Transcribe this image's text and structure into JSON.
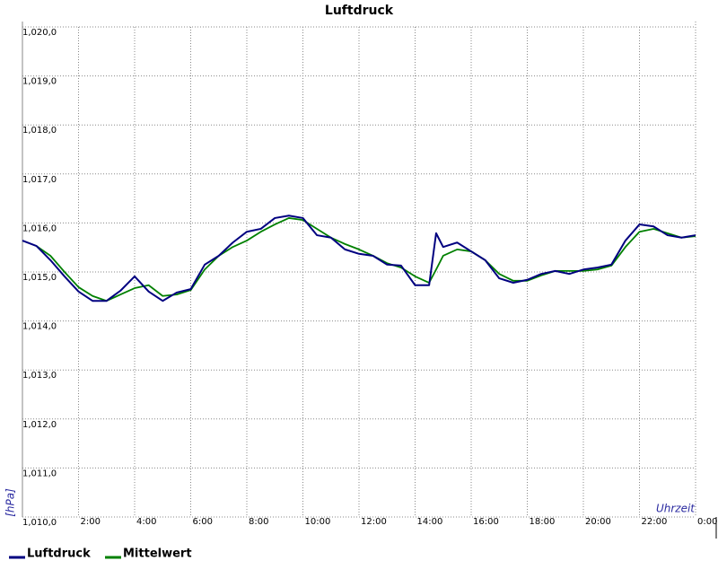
{
  "chart_data": {
    "type": "line",
    "title": "Luftdruck",
    "y_label": "[hPa]",
    "x_label": "Uhrzeit",
    "xlim": [
      0,
      24
    ],
    "ylim": [
      1010,
      1020
    ],
    "grid": true,
    "legend": "bottom-left",
    "xticks": [
      {
        "value": 2,
        "label": "2:00"
      },
      {
        "value": 4,
        "label": "4:00"
      },
      {
        "value": 6,
        "label": "6:00"
      },
      {
        "value": 8,
        "label": "8:00"
      },
      {
        "value": 10,
        "label": "10:00"
      },
      {
        "value": 12,
        "label": "12:00"
      },
      {
        "value": 14,
        "label": "14:00"
      },
      {
        "value": 16,
        "label": "16:00"
      },
      {
        "value": 18,
        "label": "18:00"
      },
      {
        "value": 20,
        "label": "20:00"
      },
      {
        "value": 22,
        "label": "22:00"
      },
      {
        "value": 24,
        "label": "0:00"
      }
    ],
    "yticks": [
      {
        "value": 1010,
        "label": "1,010,0"
      },
      {
        "value": 1011,
        "label": "1,011,0"
      },
      {
        "value": 1012,
        "label": "1,012,0"
      },
      {
        "value": 1013,
        "label": "1,013,0"
      },
      {
        "value": 1014,
        "label": "1,014,0"
      },
      {
        "value": 1015,
        "label": "1,015,0"
      },
      {
        "value": 1016,
        "label": "1,016,0"
      },
      {
        "value": 1017,
        "label": "1,017,0"
      },
      {
        "value": 1018,
        "label": "1,018,0"
      },
      {
        "value": 1019,
        "label": "1,019,0"
      },
      {
        "value": 1020,
        "label": "1,020,0"
      }
    ],
    "x": [
      0,
      0.5,
      1,
      1.5,
      2,
      2.5,
      3,
      3.5,
      4,
      4.5,
      5,
      5.5,
      6,
      6.5,
      7,
      7.5,
      8,
      8.5,
      9,
      9.5,
      10,
      10.5,
      11,
      11.5,
      12,
      12.5,
      13,
      13.5,
      14,
      14.5,
      14.75,
      15,
      15.5,
      16,
      16.5,
      17,
      17.5,
      18,
      18.5,
      19,
      19.5,
      20,
      20.5,
      21,
      21.5,
      22,
      22.5,
      23,
      23.5,
      24
    ],
    "series": [
      {
        "name": "Luftdruck",
        "color": "#000080",
        "values": [
          1015.64,
          1015.53,
          1015.24,
          1014.91,
          1014.6,
          1014.41,
          1014.41,
          1014.62,
          1014.91,
          1014.6,
          1014.41,
          1014.58,
          1014.65,
          1015.15,
          1015.33,
          1015.6,
          1015.82,
          1015.88,
          1016.1,
          1016.15,
          1016.1,
          1015.75,
          1015.7,
          1015.46,
          1015.37,
          1015.33,
          1015.15,
          1015.13,
          1014.73,
          1014.73,
          1015.79,
          1015.51,
          1015.6,
          1015.42,
          1015.24,
          1014.87,
          1014.78,
          1014.84,
          1014.96,
          1015.02,
          1014.96,
          1015.05,
          1015.09,
          1015.15,
          1015.64,
          1015.97,
          1015.93,
          1015.75,
          1015.7,
          1015.75
        ]
      },
      {
        "name": "Mittelwert",
        "color": "#008000",
        "values": [
          null,
          1015.53,
          1015.33,
          1015.0,
          1014.69,
          1014.51,
          1014.41,
          1014.54,
          1014.67,
          1014.73,
          1014.51,
          1014.54,
          1014.63,
          1015.05,
          1015.33,
          1015.51,
          1015.64,
          1015.82,
          1015.97,
          1016.1,
          1016.06,
          1015.88,
          1015.7,
          1015.57,
          1015.46,
          1015.33,
          1015.18,
          1015.09,
          1014.91,
          1014.78,
          1015.05,
          1015.33,
          1015.46,
          1015.42,
          1015.24,
          1014.96,
          1014.82,
          1014.82,
          1014.93,
          1015.02,
          1015.02,
          1015.02,
          1015.05,
          1015.13,
          1015.51,
          1015.82,
          1015.88,
          1015.79,
          1015.7,
          1015.73
        ]
      }
    ]
  }
}
